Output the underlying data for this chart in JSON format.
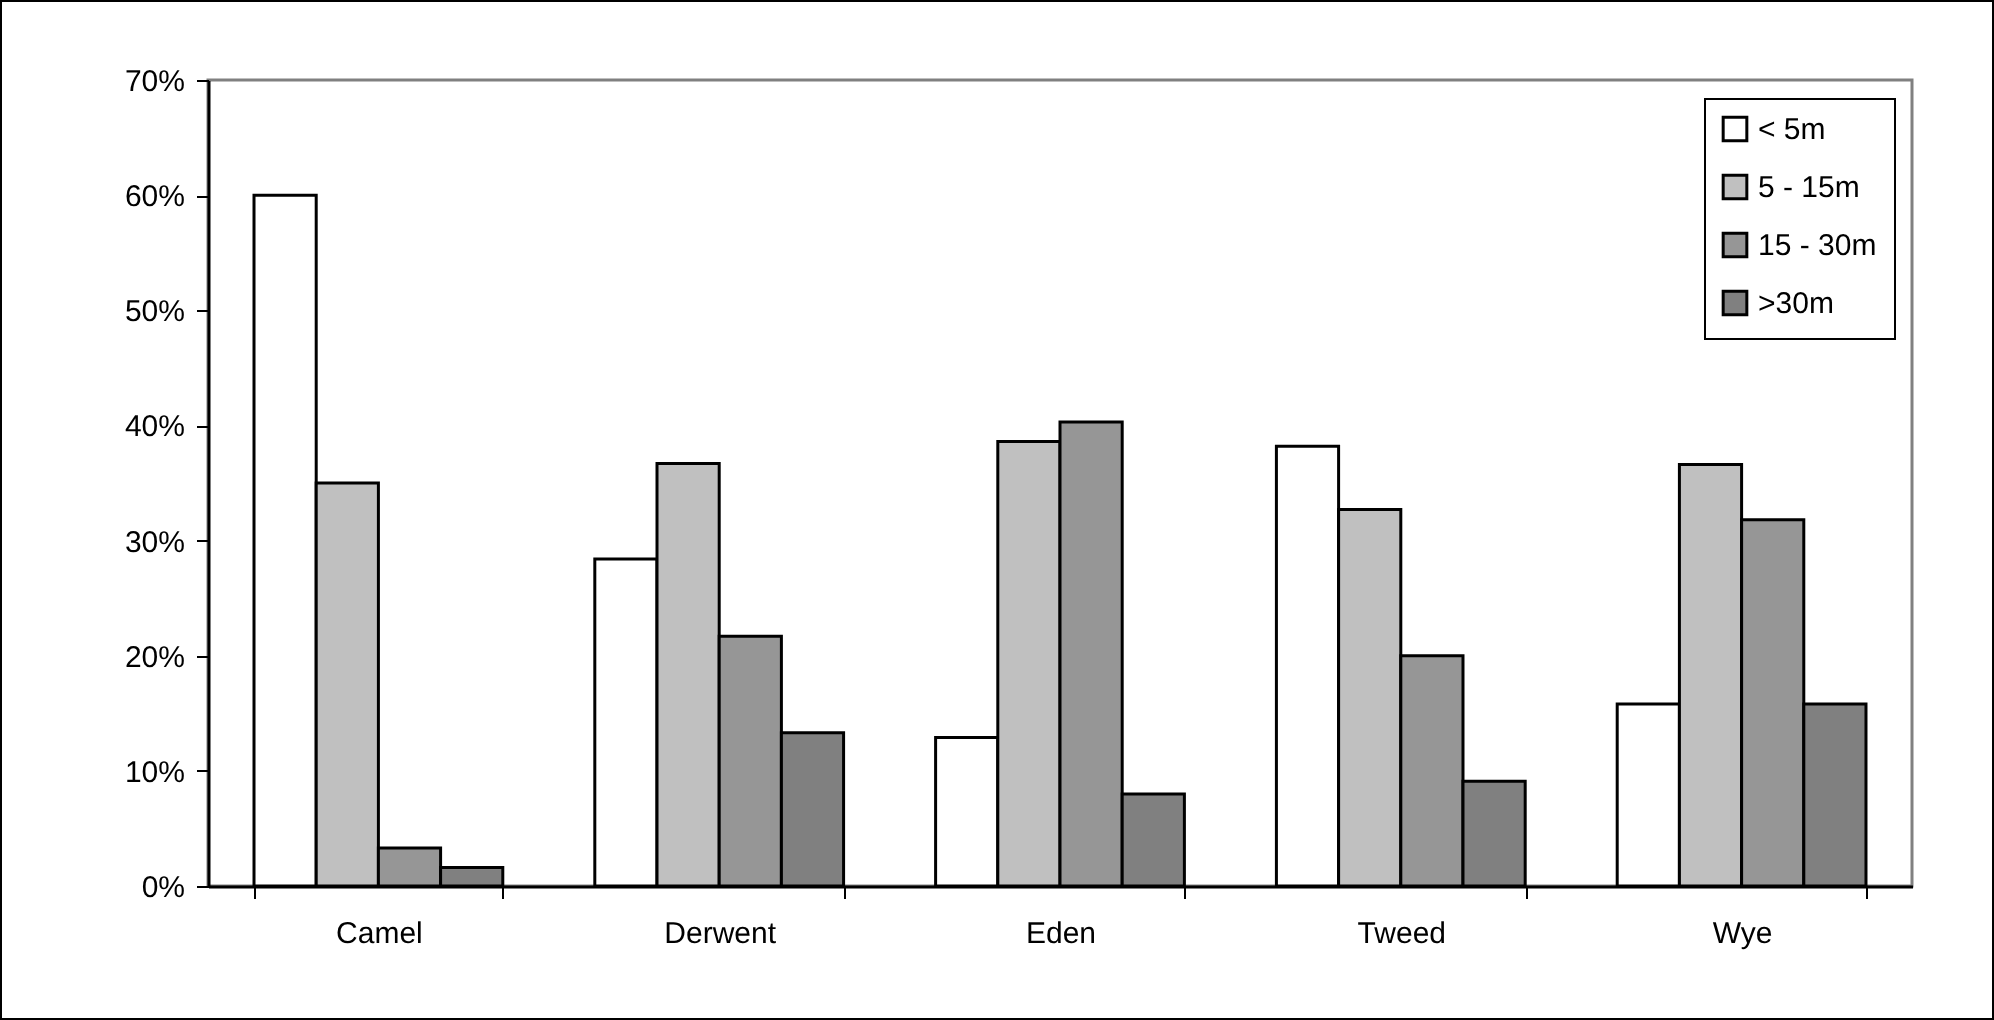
{
  "chart_data": {
    "type": "bar",
    "categories": [
      "Camel",
      "Derwent",
      "Eden",
      "Tweed",
      "Wye"
    ],
    "series": [
      {
        "name": "< 5m",
        "color": "#ffffff",
        "values": [
          60,
          28.4,
          12.9,
          38.2,
          15.8
        ]
      },
      {
        "name": "5 - 15m",
        "color": "#c0c0c0",
        "values": [
          35,
          36.7,
          38.6,
          32.7,
          36.6
        ]
      },
      {
        "name": "15 - 30m",
        "color": "#969696",
        "values": [
          3.3,
          21.7,
          40.3,
          20,
          31.8
        ]
      },
      {
        "name": ">30m",
        "color": "#808080",
        "values": [
          1.6,
          13.3,
          8,
          9.1,
          15.8
        ]
      }
    ],
    "ylim": [
      0,
      70
    ],
    "yticks": [
      {
        "value": 0,
        "label": "0%"
      },
      {
        "value": 10,
        "label": "10%"
      },
      {
        "value": 20,
        "label": "20%"
      },
      {
        "value": 30,
        "label": "30%"
      },
      {
        "value": 40,
        "label": "40%"
      },
      {
        "value": 50,
        "label": "50%"
      },
      {
        "value": 60,
        "label": "60%"
      },
      {
        "value": 70,
        "label": "70%"
      }
    ],
    "grid": false,
    "legend": "top right"
  }
}
